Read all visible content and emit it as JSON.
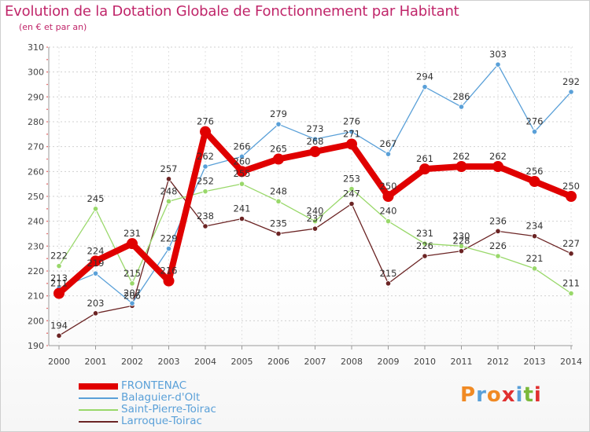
{
  "title": "Evolution de la Dotation Globale de Fonctionnement par Habitant",
  "subtitle": "(en € et par an)",
  "logo": {
    "text": "Proxiti",
    "colors": [
      "#f08a24",
      "#5aa0d8",
      "#f08a24",
      "#e03030",
      "#5aa0d8",
      "#7ab83a",
      "#e03030"
    ]
  },
  "chart_data": {
    "type": "line",
    "x": [
      "2000",
      "2001",
      "2002",
      "2003",
      "2004",
      "2005",
      "2006",
      "2007",
      "2008",
      "2009",
      "2010",
      "2011",
      "2012",
      "2013",
      "2014"
    ],
    "ylim": [
      190,
      310
    ],
    "yticks": [
      190,
      200,
      210,
      220,
      230,
      240,
      250,
      260,
      270,
      280,
      290,
      300,
      310
    ],
    "grid": "horizontal",
    "legend": "bottom-left",
    "series": [
      {
        "name": "FRONTENAC",
        "color": "#e00000",
        "values": [
          211,
          224,
          231,
          216,
          276,
          260,
          265,
          268,
          271,
          250,
          261,
          262,
          262,
          256,
          250
        ]
      },
      {
        "name": "Balaguier-d'Olt",
        "color": "#5aa0d8",
        "values": [
          213,
          219,
          207,
          229,
          262,
          266,
          279,
          273,
          276,
          267,
          294,
          286,
          303,
          276,
          292
        ]
      },
      {
        "name": "Saint-Pierre-Toirac",
        "color": "#99d86a",
        "values": [
          222,
          245,
          215,
          248,
          252,
          255,
          248,
          240,
          253,
          240,
          231,
          230,
          226,
          221,
          211
        ]
      },
      {
        "name": "Larroque-Toirac",
        "color": "#6b2424",
        "values": [
          194,
          203,
          206,
          257,
          238,
          241,
          235,
          237,
          247,
          215,
          226,
          228,
          236,
          234,
          227
        ]
      }
    ]
  }
}
